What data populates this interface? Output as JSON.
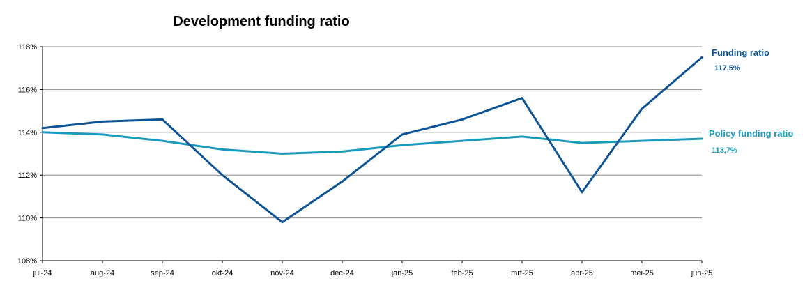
{
  "chart_data": {
    "type": "line",
    "title": "Development funding ratio",
    "xlabel": "",
    "ylabel": "",
    "categories": [
      "jul-24",
      "aug-24",
      "sep-24",
      "okt-24",
      "nov-24",
      "dec-24",
      "jan-25",
      "feb-25",
      "mrt-25",
      "apr-25",
      "mei-25",
      "jun-25"
    ],
    "ylim": [
      108,
      118
    ],
    "yticks": [
      108,
      110,
      112,
      114,
      116,
      118
    ],
    "ytick_labels": [
      "108%",
      "110%",
      "112%",
      "114%",
      "116%",
      "118%"
    ],
    "grid": true,
    "legend_placement": "right",
    "series": [
      {
        "name": "Funding ratio",
        "value_label": "117,5%",
        "color": "#0B5394",
        "values": [
          114.2,
          114.5,
          114.6,
          112.0,
          109.8,
          111.7,
          113.9,
          114.6,
          115.6,
          111.2,
          115.1,
          117.5
        ]
      },
      {
        "name": "Policy funding ratio",
        "value_label": "113,7%",
        "color": "#1A9BBE",
        "values": [
          114.0,
          113.9,
          113.6,
          113.2,
          113.0,
          113.1,
          113.4,
          113.6,
          113.8,
          113.5,
          113.6,
          113.7
        ]
      }
    ]
  }
}
